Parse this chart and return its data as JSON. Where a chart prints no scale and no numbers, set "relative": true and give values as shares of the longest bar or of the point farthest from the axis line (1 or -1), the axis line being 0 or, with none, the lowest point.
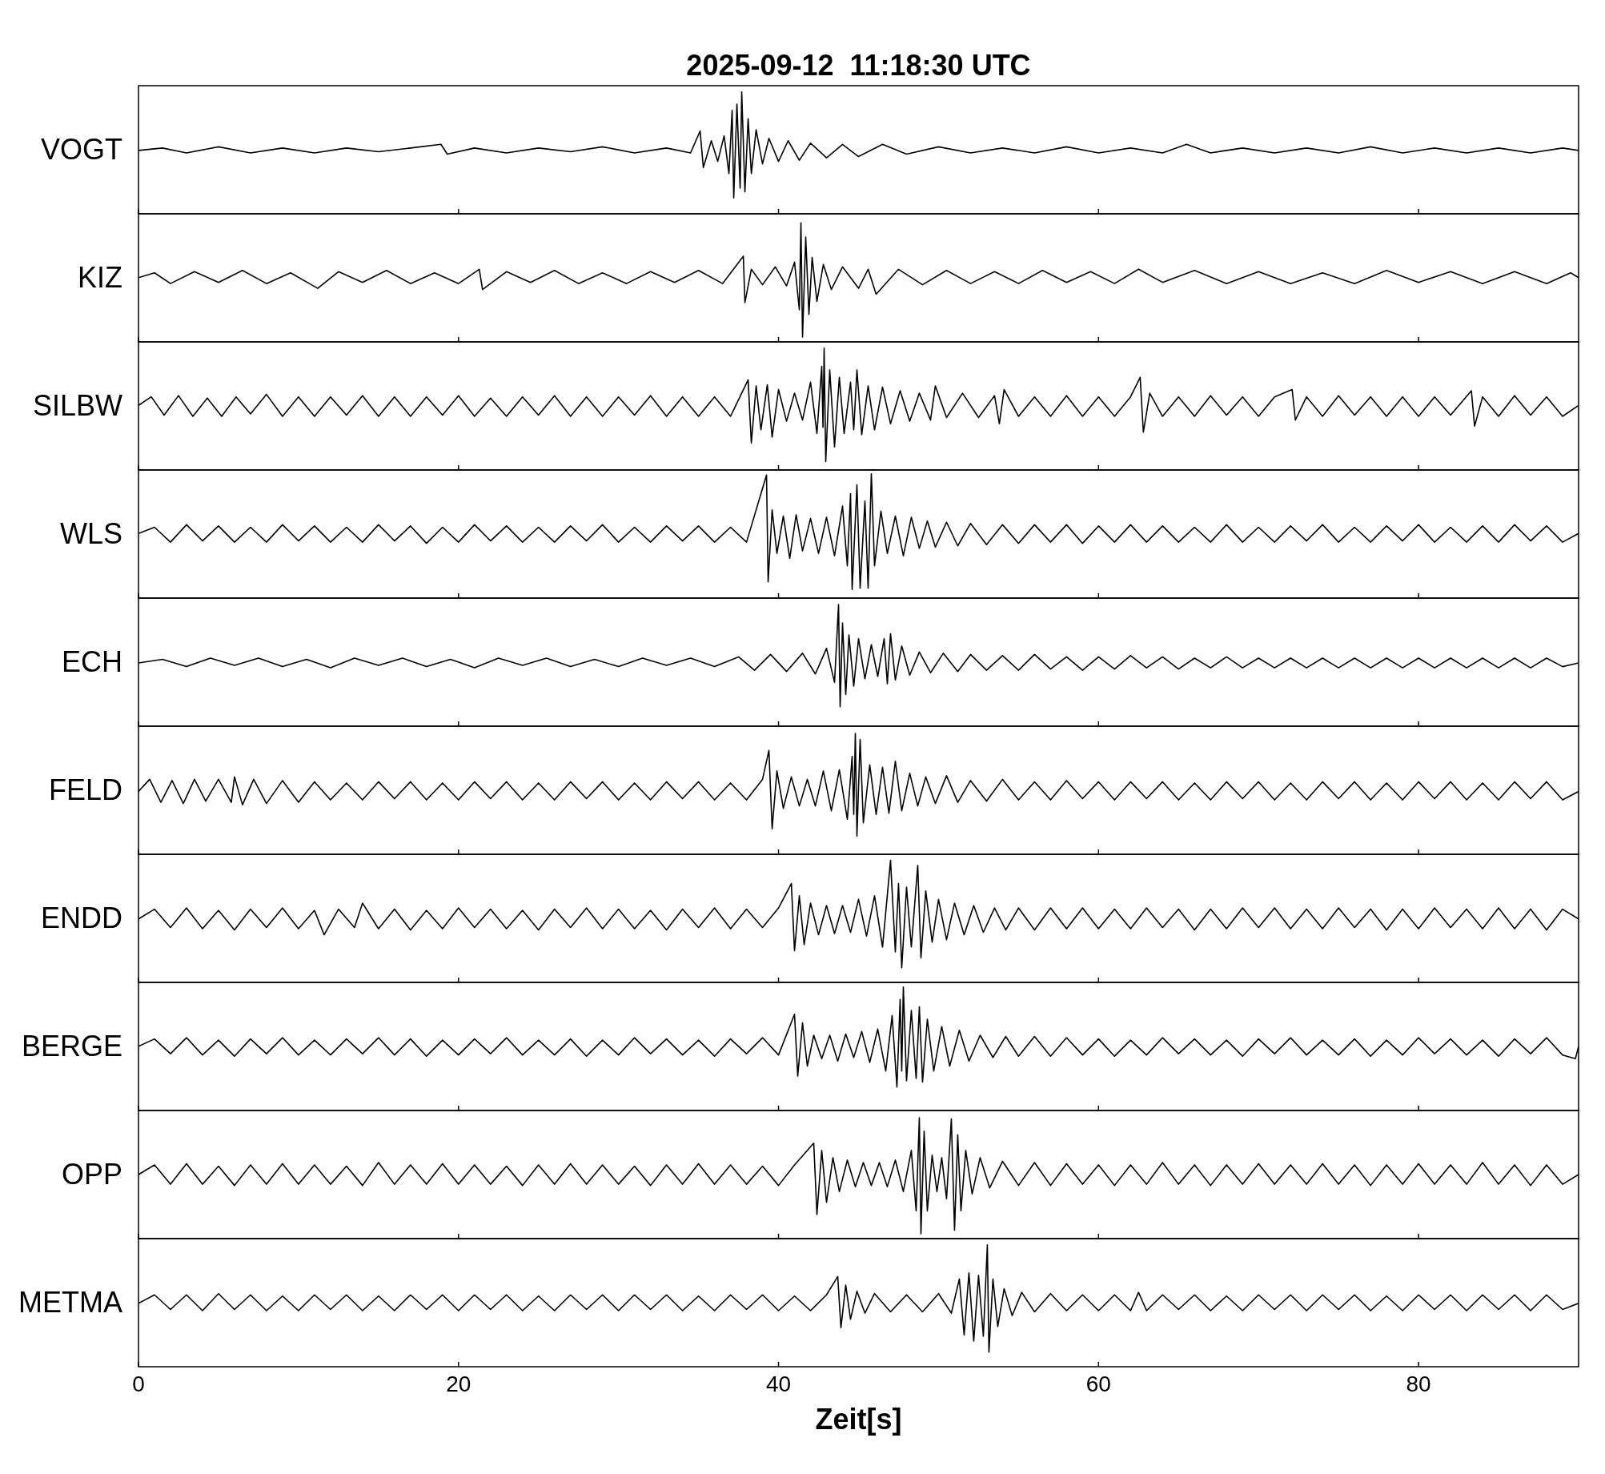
{
  "chart_data": [
    {
      "type": "line",
      "title": "2025-09-12  11:18:30 UTC",
      "ylabel": "VOGT",
      "relative": true,
      "color": "#000000",
      "xlim": [
        0,
        90
      ],
      "xticks": [
        0,
        20,
        40,
        60,
        80
      ],
      "tick_labels": false,
      "x": [
        0,
        1.5,
        3,
        5,
        7,
        9,
        11,
        13,
        15,
        17,
        18.9,
        19.3,
        21,
        23,
        25,
        27,
        29,
        31,
        33,
        34.5,
        35.1,
        35.3,
        35.8,
        36.2,
        36.6,
        36.9,
        37.1,
        37.2,
        37.4,
        37.6,
        37.7,
        37.9,
        38.1,
        38.3,
        38.6,
        39,
        39.4,
        40,
        40.6,
        41.3,
        42,
        43,
        44,
        45,
        46.5,
        48,
        50,
        52,
        54,
        56,
        58,
        60,
        62,
        64,
        65.5,
        67,
        69,
        71,
        73,
        75,
        77,
        79,
        81,
        83,
        85,
        87,
        89,
        90
      ],
      "values": [
        0.52,
        0.54,
        0.5,
        0.55,
        0.5,
        0.54,
        0.5,
        0.54,
        0.51,
        0.54,
        0.57,
        0.49,
        0.54,
        0.5,
        0.54,
        0.51,
        0.55,
        0.5,
        0.54,
        0.5,
        0.68,
        0.38,
        0.6,
        0.43,
        0.64,
        0.33,
        0.85,
        0.13,
        0.9,
        0.21,
        1,
        0.18,
        0.78,
        0.33,
        0.69,
        0.41,
        0.62,
        0.43,
        0.6,
        0.44,
        0.58,
        0.46,
        0.57,
        0.47,
        0.57,
        0.49,
        0.55,
        0.5,
        0.54,
        0.5,
        0.55,
        0.5,
        0.54,
        0.5,
        0.57,
        0.5,
        0.54,
        0.5,
        0.54,
        0.5,
        0.55,
        0.5,
        0.54,
        0.5,
        0.54,
        0.5,
        0.54,
        0.52
      ]
    },
    {
      "type": "line",
      "ylabel": "KIZ",
      "relative": true,
      "color": "#000000",
      "xlim": [
        0,
        90
      ],
      "xticks": [
        0,
        20,
        40,
        60,
        80
      ],
      "tick_labels": false,
      "x": [
        0,
        1,
        2,
        3.5,
        5,
        6.5,
        8,
        9.5,
        11.2,
        12.5,
        14,
        15.5,
        17,
        18.5,
        20,
        21.3,
        21.5,
        23,
        24.5,
        26,
        27.5,
        29,
        30.5,
        32,
        33.5,
        35,
        36.5,
        37.8,
        37.9,
        38.3,
        39,
        39.8,
        40.5,
        41,
        41.3,
        41.4,
        41.5,
        41.7,
        41.9,
        42.1,
        42.4,
        42.8,
        43.3,
        44,
        45,
        45.6,
        46.1,
        47.5,
        49,
        50.5,
        52,
        53.5,
        55,
        56.5,
        58,
        59.5,
        61,
        62.5,
        64,
        66,
        68,
        70,
        72,
        74,
        76,
        78,
        80,
        82,
        84,
        86,
        88,
        89.5,
        90
      ],
      "values": [
        0.54,
        0.58,
        0.49,
        0.59,
        0.5,
        0.6,
        0.49,
        0.58,
        0.45,
        0.59,
        0.5,
        0.6,
        0.49,
        0.58,
        0.49,
        0.61,
        0.44,
        0.59,
        0.5,
        0.6,
        0.49,
        0.58,
        0.49,
        0.59,
        0.5,
        0.6,
        0.49,
        0.72,
        0.33,
        0.61,
        0.48,
        0.63,
        0.47,
        0.67,
        0.27,
        1,
        0.04,
        0.88,
        0.23,
        0.71,
        0.34,
        0.65,
        0.44,
        0.63,
        0.45,
        0.61,
        0.4,
        0.61,
        0.48,
        0.6,
        0.49,
        0.59,
        0.49,
        0.6,
        0.5,
        0.59,
        0.49,
        0.61,
        0.5,
        0.6,
        0.49,
        0.59,
        0.49,
        0.58,
        0.49,
        0.6,
        0.5,
        0.59,
        0.49,
        0.59,
        0.49,
        0.58,
        0.54
      ]
    },
    {
      "type": "line",
      "ylabel": "SILBW",
      "relative": true,
      "color": "#000000",
      "xlim": [
        0,
        90
      ],
      "xticks": [
        0,
        20,
        40,
        60,
        80
      ],
      "tick_labels": false,
      "x": [
        0,
        0.8,
        1.6,
        2.5,
        3.4,
        4.3,
        5.2,
        6.1,
        7,
        8,
        9,
        10,
        11,
        12,
        13,
        14,
        15,
        16,
        17,
        18,
        19,
        20,
        21,
        22,
        23,
        24,
        25,
        26,
        27,
        28,
        29,
        30,
        31,
        32,
        33,
        34,
        35,
        36,
        37,
        38.1,
        38.3,
        38.6,
        38.9,
        39.3,
        39.6,
        40,
        40.5,
        41,
        41.5,
        42,
        42.4,
        42.7,
        42.78,
        42.85,
        42.95,
        43.2,
        43.5,
        43.8,
        44.1,
        44.5,
        44.7,
        44.9,
        45.2,
        45.6,
        46,
        46.5,
        47,
        47.6,
        48.2,
        48.8,
        49.5,
        49.8,
        50.5,
        51.5,
        52.5,
        53.5,
        53.8,
        54.1,
        55,
        56,
        57,
        58,
        59,
        60,
        61,
        62,
        62.6,
        62.8,
        63.2,
        64,
        65,
        66,
        67,
        68,
        69,
        70,
        71,
        72.1,
        72.3,
        73,
        74,
        75,
        76,
        77,
        78,
        79,
        80,
        81,
        82,
        83.3,
        83.5,
        84,
        85,
        86,
        87,
        88,
        89,
        90
      ],
      "values": [
        0.53,
        0.6,
        0.45,
        0.61,
        0.44,
        0.59,
        0.44,
        0.6,
        0.46,
        0.62,
        0.44,
        0.6,
        0.44,
        0.6,
        0.45,
        0.61,
        0.44,
        0.6,
        0.44,
        0.6,
        0.45,
        0.61,
        0.44,
        0.59,
        0.44,
        0.6,
        0.45,
        0.61,
        0.44,
        0.6,
        0.44,
        0.6,
        0.45,
        0.61,
        0.44,
        0.6,
        0.44,
        0.6,
        0.44,
        0.74,
        0.22,
        0.69,
        0.33,
        0.7,
        0.27,
        0.66,
        0.4,
        0.63,
        0.41,
        0.72,
        0.3,
        0.85,
        0.35,
        1,
        0.07,
        0.82,
        0.19,
        0.76,
        0.3,
        0.72,
        0.33,
        0.82,
        0.29,
        0.69,
        0.33,
        0.68,
        0.38,
        0.65,
        0.4,
        0.63,
        0.41,
        0.69,
        0.43,
        0.63,
        0.43,
        0.61,
        0.38,
        0.66,
        0.44,
        0.6,
        0.44,
        0.61,
        0.44,
        0.6,
        0.44,
        0.6,
        0.76,
        0.31,
        0.63,
        0.44,
        0.6,
        0.44,
        0.61,
        0.45,
        0.6,
        0.44,
        0.6,
        0.66,
        0.41,
        0.6,
        0.44,
        0.61,
        0.45,
        0.6,
        0.44,
        0.6,
        0.44,
        0.6,
        0.45,
        0.65,
        0.36,
        0.6,
        0.44,
        0.61,
        0.45,
        0.6,
        0.44,
        0.53
      ]
    },
    {
      "type": "line",
      "ylabel": "WLS",
      "relative": true,
      "color": "#000000",
      "xlim": [
        0,
        90
      ],
      "xticks": [
        0,
        20,
        40,
        60,
        80
      ],
      "tick_labels": false,
      "x": [
        0,
        1,
        2,
        3,
        4,
        5,
        6,
        7,
        8,
        9,
        10,
        11,
        12,
        13,
        14,
        15,
        16,
        17,
        18,
        19,
        20,
        21,
        22,
        23,
        24,
        25,
        26,
        27,
        28,
        29,
        30,
        31,
        32,
        33,
        34,
        35,
        36,
        37,
        38,
        39.25,
        39.35,
        39.6,
        39.9,
        40.3,
        40.7,
        41.1,
        41.5,
        42,
        42.5,
        43,
        43.5,
        44,
        44.3,
        44.5,
        44.6,
        44.9,
        45.1,
        45.4,
        45.6,
        45.8,
        46,
        46.4,
        46.8,
        47.3,
        47.8,
        48.3,
        48.8,
        49.3,
        49.8,
        50.5,
        51.2,
        52,
        53,
        54,
        55,
        56,
        57,
        58,
        59,
        60,
        61,
        62,
        63,
        64,
        65,
        66,
        67,
        68,
        69,
        70,
        71,
        72,
        73,
        74,
        75,
        76,
        77,
        78,
        79,
        80,
        81,
        82,
        83,
        84,
        85,
        86,
        87,
        88,
        89,
        90
      ],
      "values": [
        0.52,
        0.57,
        0.45,
        0.59,
        0.46,
        0.58,
        0.45,
        0.57,
        0.45,
        0.59,
        0.46,
        0.58,
        0.45,
        0.57,
        0.45,
        0.59,
        0.46,
        0.58,
        0.44,
        0.57,
        0.45,
        0.59,
        0.46,
        0.58,
        0.45,
        0.57,
        0.45,
        0.58,
        0.46,
        0.59,
        0.45,
        0.57,
        0.45,
        0.58,
        0.46,
        0.58,
        0.45,
        0.57,
        0.45,
        0.99,
        0.13,
        0.71,
        0.36,
        0.66,
        0.32,
        0.67,
        0.38,
        0.64,
        0.36,
        0.65,
        0.34,
        0.74,
        0.26,
        0.84,
        0.07,
        0.91,
        0.08,
        0.78,
        0.08,
        1,
        0.26,
        0.7,
        0.36,
        0.66,
        0.34,
        0.65,
        0.4,
        0.62,
        0.41,
        0.61,
        0.42,
        0.6,
        0.43,
        0.59,
        0.44,
        0.59,
        0.45,
        0.59,
        0.44,
        0.58,
        0.45,
        0.59,
        0.45,
        0.58,
        0.45,
        0.57,
        0.45,
        0.59,
        0.45,
        0.57,
        0.45,
        0.58,
        0.46,
        0.59,
        0.45,
        0.57,
        0.45,
        0.58,
        0.46,
        0.59,
        0.45,
        0.57,
        0.45,
        0.58,
        0.45,
        0.59,
        0.46,
        0.58,
        0.45,
        0.52
      ]
    },
    {
      "type": "line",
      "ylabel": "ECH",
      "relative": true,
      "color": "#000000",
      "xlim": [
        0,
        90
      ],
      "xticks": [
        0,
        20,
        40,
        60,
        80
      ],
      "tick_labels": false,
      "x": [
        0,
        1.5,
        3,
        4.5,
        6,
        7.5,
        9,
        10.5,
        12,
        13.5,
        15,
        16.5,
        18,
        19.5,
        21,
        22.5,
        24,
        25.5,
        27,
        28.5,
        30,
        31.5,
        33,
        34.5,
        36,
        37.5,
        38.5,
        39.5,
        40.5,
        41.5,
        42.3,
        43,
        43.5,
        43.75,
        43.85,
        44,
        44.2,
        44.4,
        44.7,
        45,
        45.4,
        45.8,
        46.2,
        46.6,
        46.8,
        47,
        47.3,
        47.7,
        48.2,
        48.8,
        49.5,
        50.3,
        51.2,
        52,
        53,
        54,
        55,
        56,
        57,
        58,
        59,
        60,
        61,
        62,
        63,
        64,
        65,
        66,
        67,
        68,
        69,
        70,
        71,
        72,
        73,
        74,
        75,
        76,
        77,
        78,
        79,
        80,
        81,
        82,
        83,
        84,
        85,
        86,
        87,
        88,
        89,
        90
      ],
      "values": [
        0.52,
        0.55,
        0.49,
        0.56,
        0.5,
        0.56,
        0.49,
        0.55,
        0.48,
        0.56,
        0.5,
        0.56,
        0.49,
        0.55,
        0.48,
        0.56,
        0.5,
        0.56,
        0.49,
        0.55,
        0.49,
        0.56,
        0.5,
        0.56,
        0.49,
        0.57,
        0.46,
        0.59,
        0.45,
        0.6,
        0.43,
        0.64,
        0.36,
        1,
        0.16,
        0.85,
        0.26,
        0.75,
        0.33,
        0.72,
        0.39,
        0.67,
        0.41,
        0.72,
        0.35,
        0.76,
        0.38,
        0.66,
        0.42,
        0.61,
        0.44,
        0.6,
        0.45,
        0.59,
        0.46,
        0.58,
        0.46,
        0.59,
        0.47,
        0.57,
        0.46,
        0.57,
        0.47,
        0.58,
        0.48,
        0.57,
        0.47,
        0.56,
        0.48,
        0.57,
        0.48,
        0.56,
        0.48,
        0.56,
        0.48,
        0.56,
        0.48,
        0.56,
        0.48,
        0.56,
        0.48,
        0.56,
        0.48,
        0.56,
        0.48,
        0.56,
        0.48,
        0.56,
        0.48,
        0.56,
        0.49,
        0.52
      ]
    },
    {
      "type": "line",
      "ylabel": "FELD",
      "relative": true,
      "color": "#000000",
      "xlim": [
        0,
        90
      ],
      "xticks": [
        0,
        20,
        40,
        60,
        80
      ],
      "tick_labels": false,
      "x": [
        0,
        0.7,
        1.4,
        2.1,
        2.8,
        3.5,
        4.2,
        5,
        5.8,
        6,
        6.5,
        7.2,
        8,
        9,
        10,
        11,
        12,
        13,
        14,
        15,
        16,
        17,
        18,
        19,
        20,
        21,
        22,
        23,
        24,
        25,
        26,
        27,
        28,
        29,
        30,
        31,
        32,
        33,
        34,
        35,
        36,
        37,
        38,
        39,
        39.4,
        39.6,
        39.9,
        40.3,
        40.8,
        41.3,
        41.8,
        42.3,
        42.8,
        43.3,
        43.8,
        44.3,
        44.6,
        44.7,
        44.8,
        44.9,
        45.1,
        45.3,
        45.7,
        46.1,
        46.5,
        46.9,
        47.3,
        47.7,
        48.2,
        48.7,
        49.2,
        49.8,
        50.5,
        51.2,
        52,
        53,
        54,
        55,
        56,
        57,
        58,
        59,
        60,
        61,
        62,
        63,
        64,
        65,
        66,
        67,
        68,
        69,
        70,
        71,
        72,
        73,
        74,
        75,
        76,
        77,
        78,
        79,
        80,
        81,
        82,
        83,
        84,
        85,
        86,
        87,
        88,
        89,
        90
      ],
      "values": [
        0.52,
        0.62,
        0.43,
        0.61,
        0.42,
        0.62,
        0.44,
        0.62,
        0.43,
        0.64,
        0.41,
        0.62,
        0.42,
        0.61,
        0.43,
        0.6,
        0.45,
        0.59,
        0.45,
        0.6,
        0.46,
        0.6,
        0.45,
        0.59,
        0.45,
        0.6,
        0.46,
        0.6,
        0.45,
        0.59,
        0.45,
        0.6,
        0.46,
        0.6,
        0.45,
        0.59,
        0.45,
        0.6,
        0.46,
        0.6,
        0.45,
        0.59,
        0.45,
        0.62,
        0.86,
        0.21,
        0.69,
        0.38,
        0.64,
        0.4,
        0.62,
        0.4,
        0.69,
        0.36,
        0.7,
        0.29,
        0.81,
        0.33,
        1,
        0.15,
        0.95,
        0.26,
        0.74,
        0.33,
        0.72,
        0.34,
        0.77,
        0.36,
        0.67,
        0.4,
        0.64,
        0.42,
        0.65,
        0.43,
        0.61,
        0.44,
        0.62,
        0.45,
        0.6,
        0.45,
        0.61,
        0.46,
        0.6,
        0.45,
        0.6,
        0.46,
        0.6,
        0.45,
        0.59,
        0.45,
        0.6,
        0.46,
        0.6,
        0.45,
        0.59,
        0.45,
        0.6,
        0.46,
        0.6,
        0.45,
        0.59,
        0.45,
        0.6,
        0.46,
        0.6,
        0.45,
        0.59,
        0.45,
        0.6,
        0.46,
        0.6,
        0.45,
        0.52
      ]
    },
    {
      "type": "line",
      "ylabel": "ENDD",
      "relative": true,
      "color": "#000000",
      "xlim": [
        0,
        90
      ],
      "xticks": [
        0,
        20,
        40,
        60,
        80
      ],
      "tick_labels": false,
      "x": [
        0,
        1,
        2,
        3,
        4,
        5,
        6,
        7,
        8,
        9,
        10,
        11,
        11.6,
        12.5,
        13.5,
        14,
        15,
        16,
        17,
        18,
        19,
        20,
        21,
        22,
        23,
        24,
        25,
        26,
        27,
        28,
        29,
        30,
        31,
        32,
        33,
        34,
        35,
        36,
        37,
        38,
        39,
        40,
        40.8,
        41,
        41.3,
        41.6,
        42,
        42.5,
        43,
        43.5,
        44,
        44.5,
        45,
        45.5,
        46,
        46.5,
        47,
        47.3,
        47.5,
        47.7,
        48,
        48.3,
        48.7,
        48.9,
        49.2,
        49.6,
        50,
        50.5,
        51,
        51.6,
        52.2,
        52.8,
        53.5,
        54.2,
        55,
        56,
        57,
        58,
        59,
        60,
        61,
        62,
        63,
        64,
        65,
        66,
        67,
        68,
        69,
        70,
        71,
        72,
        73,
        74,
        75,
        76,
        77,
        78,
        79,
        80,
        81,
        82,
        83,
        84,
        85,
        86,
        87,
        88,
        89,
        90
      ],
      "values": [
        0.52,
        0.6,
        0.45,
        0.61,
        0.44,
        0.59,
        0.43,
        0.6,
        0.45,
        0.61,
        0.44,
        0.59,
        0.39,
        0.6,
        0.45,
        0.65,
        0.44,
        0.6,
        0.43,
        0.59,
        0.44,
        0.61,
        0.45,
        0.6,
        0.44,
        0.59,
        0.43,
        0.6,
        0.45,
        0.61,
        0.44,
        0.6,
        0.44,
        0.59,
        0.43,
        0.6,
        0.45,
        0.61,
        0.44,
        0.6,
        0.45,
        0.61,
        0.81,
        0.26,
        0.71,
        0.31,
        0.65,
        0.39,
        0.63,
        0.4,
        0.63,
        0.41,
        0.68,
        0.38,
        0.71,
        0.29,
        1,
        0.25,
        0.81,
        0.12,
        0.78,
        0.29,
        0.96,
        0.2,
        0.75,
        0.33,
        0.68,
        0.35,
        0.65,
        0.39,
        0.63,
        0.41,
        0.61,
        0.43,
        0.61,
        0.43,
        0.61,
        0.44,
        0.61,
        0.44,
        0.6,
        0.44,
        0.61,
        0.45,
        0.6,
        0.43,
        0.6,
        0.44,
        0.61,
        0.45,
        0.61,
        0.44,
        0.6,
        0.44,
        0.61,
        0.45,
        0.6,
        0.43,
        0.6,
        0.44,
        0.61,
        0.45,
        0.6,
        0.44,
        0.61,
        0.44,
        0.6,
        0.43,
        0.6,
        0.52
      ]
    },
    {
      "type": "line",
      "ylabel": "BERGE",
      "relative": true,
      "color": "#000000",
      "xlim": [
        0,
        90
      ],
      "xticks": [
        0,
        20,
        40,
        60,
        80
      ],
      "tick_labels": false,
      "x": [
        0,
        1,
        2,
        3,
        4,
        5,
        6,
        7,
        8,
        9,
        10,
        11,
        12,
        13,
        14,
        15,
        16,
        17,
        18,
        19,
        20,
        21,
        22,
        23,
        24,
        25,
        26,
        27,
        28,
        29,
        30,
        31,
        32,
        33,
        34,
        35,
        36,
        37,
        38,
        39,
        40,
        41,
        41.2,
        41.5,
        41.8,
        42.2,
        42.7,
        43.2,
        43.7,
        44.2,
        44.7,
        45.2,
        45.7,
        46.2,
        46.7,
        47.1,
        47.4,
        47.6,
        47.7,
        47.8,
        48,
        48.3,
        48.6,
        48.8,
        49,
        49.3,
        49.7,
        50.2,
        50.7,
        51.3,
        51.9,
        52.6,
        53.4,
        54.2,
        55,
        56,
        57,
        58,
        59,
        60,
        61,
        62,
        63,
        64,
        65,
        66,
        67,
        68,
        69,
        70,
        71,
        72,
        73,
        74,
        75,
        76,
        77,
        78,
        79,
        80,
        81,
        82,
        83,
        84,
        85,
        86,
        87,
        88,
        89,
        89.8,
        90
      ],
      "values": [
        0.52,
        0.58,
        0.46,
        0.59,
        0.45,
        0.57,
        0.44,
        0.58,
        0.46,
        0.59,
        0.45,
        0.57,
        0.45,
        0.58,
        0.46,
        0.59,
        0.45,
        0.58,
        0.44,
        0.57,
        0.45,
        0.58,
        0.46,
        0.59,
        0.45,
        0.57,
        0.45,
        0.58,
        0.44,
        0.57,
        0.45,
        0.59,
        0.46,
        0.58,
        0.45,
        0.57,
        0.44,
        0.58,
        0.46,
        0.59,
        0.45,
        0.78,
        0.28,
        0.71,
        0.36,
        0.61,
        0.42,
        0.61,
        0.4,
        0.62,
        0.43,
        0.64,
        0.39,
        0.66,
        0.32,
        0.77,
        0.19,
        0.9,
        0.32,
        1,
        0.24,
        0.81,
        0.26,
        0.84,
        0.23,
        0.74,
        0.32,
        0.68,
        0.36,
        0.65,
        0.4,
        0.61,
        0.43,
        0.6,
        0.44,
        0.6,
        0.44,
        0.59,
        0.45,
        0.58,
        0.44,
        0.57,
        0.45,
        0.59,
        0.46,
        0.58,
        0.45,
        0.57,
        0.44,
        0.58,
        0.46,
        0.59,
        0.45,
        0.57,
        0.45,
        0.58,
        0.44,
        0.57,
        0.45,
        0.59,
        0.46,
        0.58,
        0.45,
        0.57,
        0.44,
        0.58,
        0.46,
        0.59,
        0.45,
        0.42,
        0.52
      ]
    },
    {
      "type": "line",
      "ylabel": "OPP",
      "relative": true,
      "color": "#000000",
      "xlim": [
        0,
        90
      ],
      "xticks": [
        0,
        20,
        40,
        60,
        80
      ],
      "tick_labels": false,
      "x": [
        0,
        1,
        2,
        3,
        4,
        5,
        6,
        7,
        8,
        9,
        10,
        11,
        12,
        13,
        14,
        15,
        16,
        17,
        18,
        19,
        20,
        21,
        22,
        23,
        24,
        25,
        26,
        27,
        28,
        29,
        30,
        31,
        32,
        33,
        34,
        35,
        36,
        37,
        38,
        39,
        40,
        41,
        42.2,
        42.4,
        42.7,
        43,
        43.4,
        43.8,
        44.3,
        44.8,
        45.3,
        45.8,
        46.3,
        46.8,
        47.3,
        47.8,
        48.3,
        48.6,
        48.8,
        48.9,
        49.1,
        49.3,
        49.6,
        49.9,
        50.2,
        50.5,
        50.8,
        51,
        51.2,
        51.4,
        51.7,
        52.1,
        52.6,
        53.2,
        54,
        55,
        56,
        57,
        58,
        59,
        60,
        61,
        62,
        63,
        64,
        65,
        66,
        67,
        68,
        69,
        70,
        71,
        72,
        73,
        74,
        75,
        76,
        77,
        78,
        79,
        80,
        81,
        82,
        83,
        84,
        85,
        86,
        87,
        88,
        89,
        90
      ],
      "values": [
        0.53,
        0.61,
        0.45,
        0.62,
        0.45,
        0.6,
        0.44,
        0.61,
        0.45,
        0.62,
        0.45,
        0.61,
        0.45,
        0.6,
        0.44,
        0.63,
        0.45,
        0.61,
        0.45,
        0.62,
        0.45,
        0.61,
        0.45,
        0.6,
        0.44,
        0.61,
        0.45,
        0.62,
        0.45,
        0.61,
        0.45,
        0.6,
        0.44,
        0.61,
        0.45,
        0.62,
        0.45,
        0.61,
        0.45,
        0.6,
        0.44,
        0.61,
        0.79,
        0.2,
        0.73,
        0.3,
        0.67,
        0.39,
        0.65,
        0.43,
        0.63,
        0.44,
        0.63,
        0.43,
        0.65,
        0.39,
        0.73,
        0.23,
        1,
        0.04,
        0.89,
        0.23,
        0.69,
        0.39,
        0.67,
        0.33,
        0.99,
        0.07,
        0.86,
        0.23,
        0.73,
        0.37,
        0.67,
        0.42,
        0.64,
        0.44,
        0.63,
        0.44,
        0.62,
        0.45,
        0.61,
        0.44,
        0.61,
        0.45,
        0.63,
        0.45,
        0.61,
        0.44,
        0.61,
        0.45,
        0.62,
        0.45,
        0.61,
        0.45,
        0.62,
        0.45,
        0.61,
        0.44,
        0.61,
        0.45,
        0.62,
        0.45,
        0.61,
        0.45,
        0.63,
        0.45,
        0.61,
        0.44,
        0.61,
        0.45,
        0.53
      ]
    },
    {
      "type": "line",
      "ylabel": "METMA",
      "xlabel": "Zeit[s]",
      "relative": true,
      "color": "#000000",
      "xlim": [
        0,
        90
      ],
      "xticks": [
        0,
        20,
        40,
        60,
        80
      ],
      "tick_labels": "x",
      "x": [
        0,
        1,
        2,
        3,
        4,
        5,
        6,
        7,
        8,
        9,
        10,
        11,
        12,
        13,
        14,
        15,
        16,
        17,
        18,
        19,
        20,
        21,
        22,
        23,
        24,
        25,
        26,
        27,
        28,
        29,
        30,
        31,
        32,
        33,
        34,
        35,
        36,
        37,
        38,
        39,
        40,
        41,
        42,
        43,
        43.7,
        43.9,
        44.2,
        44.5,
        44.9,
        45.4,
        46,
        47,
        48,
        49,
        50,
        50.8,
        51.3,
        51.6,
        51.9,
        52.2,
        52.5,
        52.8,
        53.05,
        53.15,
        53.4,
        53.7,
        54.1,
        54.6,
        55.2,
        56,
        57,
        58,
        59,
        60,
        61,
        62,
        62.5,
        63,
        64,
        65,
        66,
        67,
        68,
        69,
        70,
        71,
        72,
        73,
        74,
        75,
        76,
        77,
        78,
        79,
        80,
        81,
        82,
        83,
        84,
        85,
        86,
        87,
        88,
        89,
        90
      ],
      "values": [
        0.52,
        0.59,
        0.47,
        0.59,
        0.46,
        0.6,
        0.47,
        0.59,
        0.46,
        0.58,
        0.46,
        0.59,
        0.47,
        0.59,
        0.46,
        0.58,
        0.46,
        0.59,
        0.47,
        0.59,
        0.46,
        0.59,
        0.47,
        0.59,
        0.46,
        0.58,
        0.46,
        0.59,
        0.47,
        0.59,
        0.46,
        0.59,
        0.47,
        0.59,
        0.46,
        0.58,
        0.46,
        0.59,
        0.47,
        0.59,
        0.46,
        0.58,
        0.46,
        0.59,
        0.74,
        0.32,
        0.67,
        0.39,
        0.62,
        0.44,
        0.6,
        0.45,
        0.59,
        0.45,
        0.6,
        0.44,
        0.72,
        0.26,
        0.77,
        0.21,
        0.75,
        0.25,
        1,
        0.12,
        0.72,
        0.33,
        0.64,
        0.42,
        0.61,
        0.45,
        0.6,
        0.46,
        0.59,
        0.46,
        0.59,
        0.46,
        0.61,
        0.46,
        0.59,
        0.47,
        0.59,
        0.46,
        0.58,
        0.46,
        0.59,
        0.47,
        0.59,
        0.46,
        0.59,
        0.47,
        0.59,
        0.46,
        0.58,
        0.46,
        0.59,
        0.47,
        0.59,
        0.46,
        0.59,
        0.47,
        0.59,
        0.46,
        0.59,
        0.47,
        0.52
      ]
    }
  ]
}
